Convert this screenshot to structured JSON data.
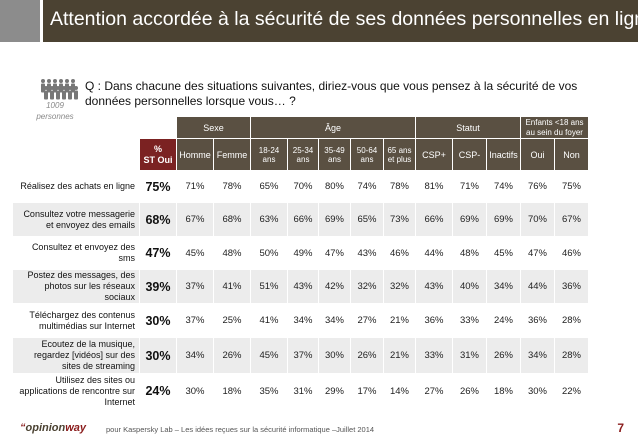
{
  "slide": {
    "title": "Attention accordée à la sécurité de ses données personnelles en ligne",
    "question": "Q : Dans chacune des situations suivantes, diriez-vous que vous pensez à la sécurité de vos données personnelles lorsque vous… ?",
    "base_count": "1009",
    "base_label": "personnes"
  },
  "table": {
    "groups": {
      "sexe": "Sexe",
      "age": "Âge",
      "statut": "Statut",
      "enfants": "Enfants <18 ans au sein du foyer"
    },
    "total_header": [
      "%",
      "ST Oui"
    ],
    "columns": [
      "Homme",
      "Femme",
      "18-24 ans",
      "25-34 ans",
      "35-49 ans",
      "50-64 ans",
      "65 ans et plus",
      "CSP+",
      "CSP-",
      "Inactifs",
      "Oui",
      "Non"
    ],
    "rows": [
      {
        "label": "Réalisez des achats en ligne",
        "total": "75%",
        "values": [
          "71%",
          "78%",
          "65%",
          "70%",
          "80%",
          "74%",
          "78%",
          "81%",
          "71%",
          "74%",
          "76%",
          "75%"
        ]
      },
      {
        "label": "Consultez votre messagerie et envoyez des emails",
        "total": "68%",
        "values": [
          "67%",
          "68%",
          "63%",
          "66%",
          "69%",
          "65%",
          "73%",
          "66%",
          "69%",
          "69%",
          "70%",
          "67%"
        ]
      },
      {
        "label": "Consultez et envoyez des sms",
        "total": "47%",
        "values": [
          "45%",
          "48%",
          "50%",
          "49%",
          "47%",
          "43%",
          "46%",
          "44%",
          "48%",
          "45%",
          "47%",
          "46%"
        ]
      },
      {
        "label": "Postez des messages, des photos sur les réseaux sociaux",
        "total": "39%",
        "values": [
          "37%",
          "41%",
          "51%",
          "43%",
          "42%",
          "32%",
          "32%",
          "43%",
          "40%",
          "34%",
          "44%",
          "36%"
        ]
      },
      {
        "label": "Téléchargez des contenus multimédias sur Internet",
        "total": "30%",
        "values": [
          "37%",
          "25%",
          "41%",
          "34%",
          "34%",
          "27%",
          "21%",
          "36%",
          "33%",
          "24%",
          "36%",
          "28%"
        ]
      },
      {
        "label": "Ecoutez de la musique, regardez [vidéos] sur des sites de streaming",
        "total": "30%",
        "values": [
          "34%",
          "26%",
          "45%",
          "37%",
          "30%",
          "26%",
          "21%",
          "33%",
          "31%",
          "26%",
          "34%",
          "28%"
        ]
      },
      {
        "label": "Utilisez des sites ou applications de rencontre sur Internet",
        "total": "24%",
        "values": [
          "30%",
          "18%",
          "35%",
          "31%",
          "29%",
          "17%",
          "14%",
          "27%",
          "26%",
          "18%",
          "30%",
          "22%"
        ]
      }
    ]
  },
  "footer": {
    "logo_prefix": "“",
    "logo_main": "opinion",
    "logo_way": "way",
    "text": "pour Kaspersky Lab – Les idées reçues sur la sécurité informatique –Juillet 2014",
    "page": "7"
  }
}
